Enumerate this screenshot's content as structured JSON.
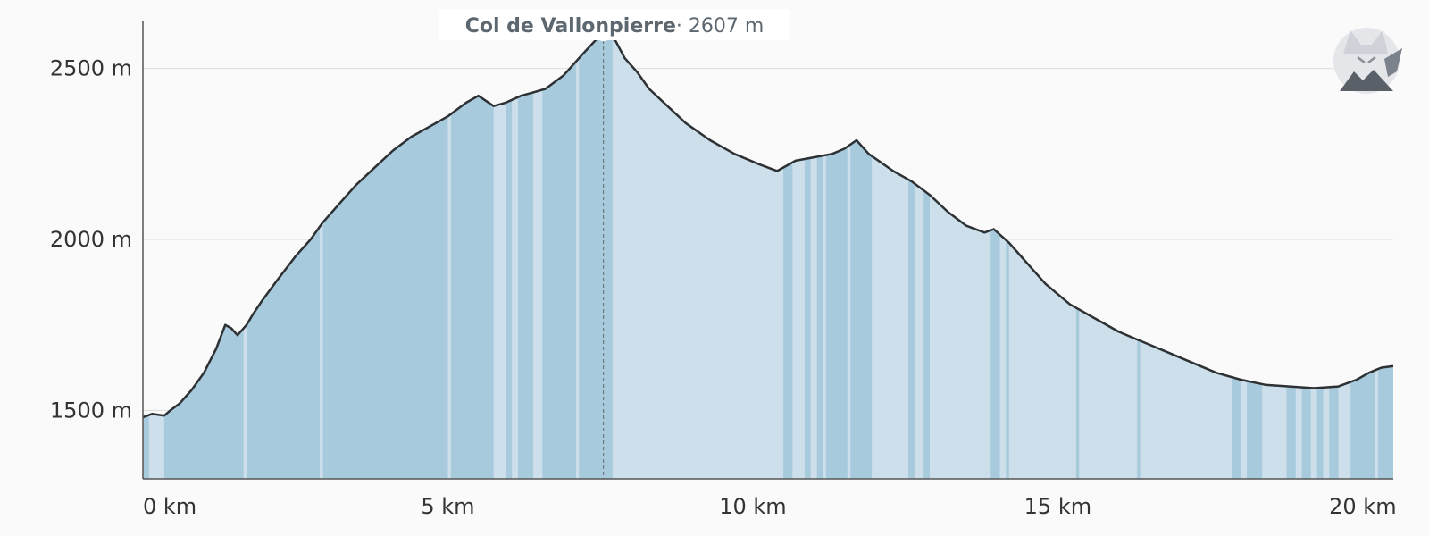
{
  "chart_data": {
    "type": "area",
    "title": "",
    "xlabel": "",
    "ylabel": "",
    "xlim": [
      0,
      20.5
    ],
    "ylim": [
      1300,
      2700
    ],
    "x_ticks": [
      {
        "value": 0,
        "label": "0 km"
      },
      {
        "value": 5,
        "label": "5 km"
      },
      {
        "value": 10,
        "label": "10 km"
      },
      {
        "value": 15,
        "label": "15 km"
      },
      {
        "value": 20,
        "label": "20 km"
      }
    ],
    "y_ticks": [
      {
        "value": 1500,
        "label": "1500 m"
      },
      {
        "value": 2000,
        "label": "2000 m"
      },
      {
        "value": 2500,
        "label": "2500 m"
      }
    ],
    "grid": true,
    "series": [
      {
        "x": [
          0,
          0.15,
          0.35,
          0.45,
          0.6,
          0.8,
          1.0,
          1.2,
          1.35,
          1.45,
          1.55,
          1.7,
          1.8,
          1.95,
          2.2,
          2.5,
          2.75,
          2.95,
          3.2,
          3.5,
          3.8,
          4.1,
          4.4,
          4.7,
          5.0,
          5.3,
          5.5,
          5.75,
          5.95,
          6.2,
          6.4,
          6.6,
          6.9,
          7.2,
          7.55,
          7.75,
          7.9,
          8.1,
          8.3,
          8.6,
          8.9,
          9.3,
          9.7,
          10.1,
          10.4,
          10.7,
          11.0,
          11.3,
          11.5,
          11.7,
          11.9,
          12.3,
          12.6,
          12.9,
          13.2,
          13.5,
          13.8,
          13.95,
          14.2,
          14.5,
          14.8,
          15.2,
          15.6,
          16.0,
          16.4,
          16.8,
          17.2,
          17.6,
          18.0,
          18.4,
          18.8,
          19.2,
          19.6,
          19.9,
          20.1,
          20.3,
          20.5
        ],
        "y": [
          1480,
          1490,
          1485,
          1500,
          1520,
          1560,
          1610,
          1680,
          1750,
          1740,
          1720,
          1750,
          1780,
          1820,
          1880,
          1950,
          2000,
          2050,
          2100,
          2160,
          2210,
          2260,
          2300,
          2330,
          2360,
          2400,
          2420,
          2390,
          2400,
          2420,
          2430,
          2440,
          2480,
          2540,
          2607,
          2580,
          2530,
          2490,
          2440,
          2390,
          2340,
          2290,
          2250,
          2220,
          2200,
          2230,
          2240,
          2250,
          2265,
          2290,
          2250,
          2200,
          2170,
          2130,
          2080,
          2040,
          2020,
          2030,
          1990,
          1930,
          1870,
          1810,
          1770,
          1730,
          1700,
          1670,
          1640,
          1610,
          1590,
          1575,
          1570,
          1565,
          1570,
          1590,
          1610,
          1625,
          1630
        ]
      }
    ],
    "steep_bands": [
      [
        0,
        0.1
      ],
      [
        0.35,
        1.65
      ],
      [
        1.7,
        2.9
      ],
      [
        2.95,
        5.0
      ],
      [
        5.05,
        5.75
      ],
      [
        5.95,
        6.05
      ],
      [
        6.15,
        6.4
      ],
      [
        6.55,
        7.1
      ],
      [
        7.15,
        7.7
      ],
      [
        10.5,
        10.65
      ],
      [
        10.85,
        10.95
      ],
      [
        11.05,
        11.15
      ],
      [
        11.2,
        11.55
      ],
      [
        11.6,
        11.95
      ],
      [
        12.55,
        12.65
      ],
      [
        12.8,
        12.9
      ],
      [
        13.9,
        14.05
      ],
      [
        14.15,
        14.2
      ],
      [
        15.3,
        15.35
      ],
      [
        16.3,
        16.35
      ],
      [
        17.85,
        18.0
      ],
      [
        18.1,
        18.35
      ],
      [
        18.75,
        18.9
      ],
      [
        19.0,
        19.15
      ],
      [
        19.25,
        19.35
      ],
      [
        19.45,
        19.6
      ],
      [
        19.8,
        20.2
      ],
      [
        20.25,
        20.5
      ]
    ],
    "peak": {
      "x": 7.55,
      "y": 2607,
      "name": "Col de Vallonpierre",
      "elevation": "· 2607 m"
    },
    "colors": {
      "area_light": "#cddfea",
      "area_steep": "#a8cadd",
      "line": "#2d3133",
      "grid": "#dddddd",
      "axis": "#555555",
      "marker": "#5f6a72",
      "tooltip_text": "#5d6770"
    }
  },
  "logo": {
    "icon": "fox-mountain-logo-icon"
  }
}
